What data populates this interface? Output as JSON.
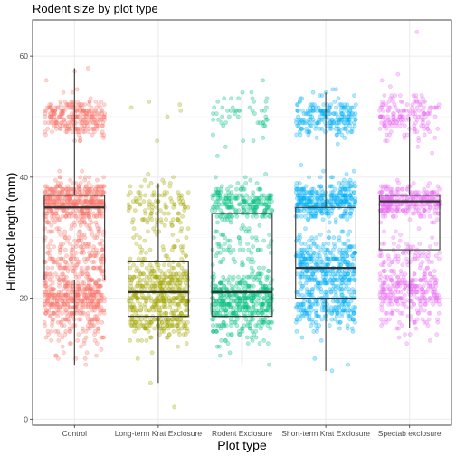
{
  "chart_data": {
    "type": "scatter",
    "subtype": "jitter points with boxplot overlay",
    "title": "Rodent size by plot type",
    "xlabel": "Plot type",
    "ylabel": "Hindfoot length (mm)",
    "ylim": [
      -1,
      66
    ],
    "yticks": [
      0,
      20,
      40,
      60
    ],
    "grid": true,
    "legend": "none",
    "point_alpha": 0.3,
    "categories": [
      "Control",
      "Long-term Krat Exclosure",
      "Rodent Exclosure",
      "Short-term Krat Exclosure",
      "Spectab exclosure"
    ],
    "colors": [
      "#f8766d",
      "#a3a500",
      "#00bf7d",
      "#00b0f6",
      "#e76bf3"
    ],
    "boxplots": [
      {
        "category": "Control",
        "min": 9,
        "q1": 23,
        "median": 35,
        "q3": 37,
        "max": 58
      },
      {
        "category": "Long-term Krat Exclosure",
        "min": 6,
        "q1": 17,
        "median": 21,
        "q3": 26,
        "max": 39
      },
      {
        "category": "Rodent Exclosure",
        "min": 9,
        "q1": 17,
        "median": 21,
        "q3": 34,
        "max": 54
      },
      {
        "category": "Short-term Krat Exclosure",
        "min": 8,
        "q1": 20,
        "median": 25,
        "q3": 35,
        "max": 54
      },
      {
        "category": "Spectab exclosure",
        "min": 15,
        "q1": 28,
        "median": 36,
        "q3": 37,
        "max": 50
      }
    ],
    "point_clusters": [
      {
        "category": "Control",
        "clusters": [
          {
            "center": 50,
            "sd": 1.6,
            "count": 260
          },
          {
            "center": 36,
            "sd": 1.8,
            "count": 420
          },
          {
            "center": 26,
            "sd": 3.5,
            "count": 260
          },
          {
            "center": 20,
            "sd": 1.8,
            "count": 300
          },
          {
            "center": 15,
            "sd": 2.5,
            "count": 90
          }
        ],
        "outliers": [
          9,
          58,
          57.5,
          56,
          11,
          12.5
        ]
      },
      {
        "category": "Long-term Krat Exclosure",
        "clusters": [
          {
            "center": 36,
            "sd": 2.2,
            "count": 100
          },
          {
            "center": 30,
            "sd": 2.5,
            "count": 40
          },
          {
            "center": 21,
            "sd": 2.8,
            "count": 380
          },
          {
            "center": 16,
            "sd": 1.5,
            "count": 110
          }
        ],
        "outliers": [
          2,
          6,
          10,
          11,
          12,
          46,
          50,
          51,
          52,
          52.5,
          51.5
        ]
      },
      {
        "category": "Rodent Exclosure",
        "clusters": [
          {
            "center": 50,
            "sd": 2.2,
            "count": 50
          },
          {
            "center": 36,
            "sd": 1.6,
            "count": 200
          },
          {
            "center": 28,
            "sd": 3,
            "count": 90
          },
          {
            "center": 20,
            "sd": 2.2,
            "count": 380
          },
          {
            "center": 15,
            "sd": 1.5,
            "count": 60
          }
        ],
        "outliers": [
          9,
          54,
          53,
          11,
          12
        ]
      },
      {
        "category": "Short-term Krat Exclosure",
        "clusters": [
          {
            "center": 50,
            "sd": 1.7,
            "count": 210
          },
          {
            "center": 36,
            "sd": 1.6,
            "count": 330
          },
          {
            "center": 25,
            "sd": 2.8,
            "count": 360
          },
          {
            "center": 18,
            "sd": 1.6,
            "count": 180
          }
        ],
        "outliers": [
          8,
          9,
          10,
          54.5,
          54
        ]
      },
      {
        "category": "Spectab exclosure",
        "clusters": [
          {
            "center": 50,
            "sd": 1.8,
            "count": 160
          },
          {
            "center": 36,
            "sd": 1.5,
            "count": 260
          },
          {
            "center": 26,
            "sd": 2.5,
            "count": 110
          },
          {
            "center": 21,
            "sd": 1.5,
            "count": 190
          },
          {
            "center": 16,
            "sd": 1.3,
            "count": 40
          }
        ],
        "outliers": [
          14,
          55,
          56,
          57,
          64
        ]
      }
    ]
  }
}
